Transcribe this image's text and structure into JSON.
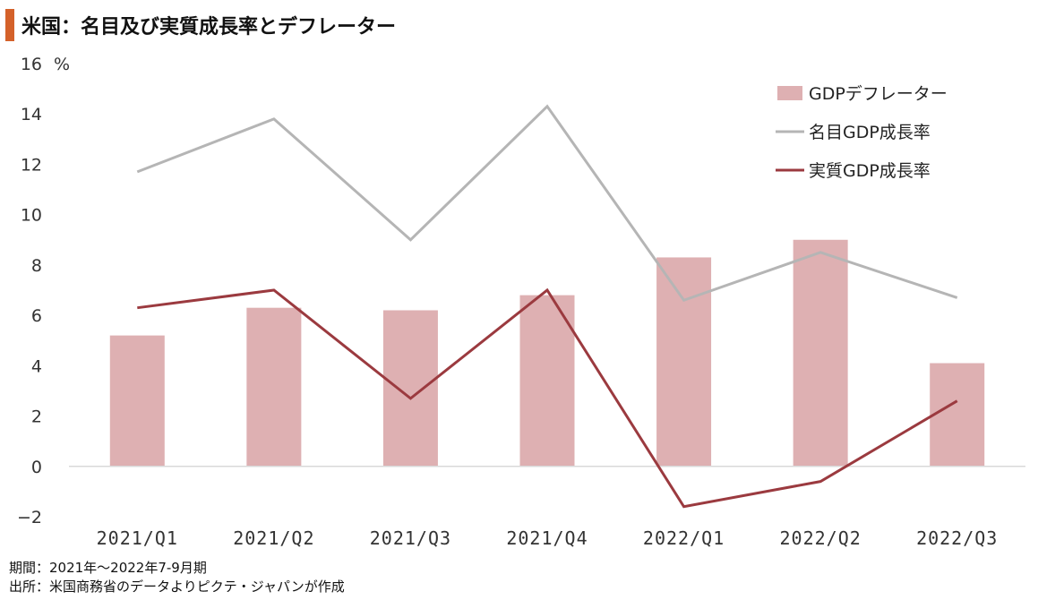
{
  "title": "米国：名目及び実質成長率とデフレーター",
  "colors": {
    "accent": "#d4612a",
    "bar": "#deb0b2",
    "nominal_line": "#b5b5b5",
    "real_line": "#9b3a3f",
    "axis": "#d9d9d9"
  },
  "chart_data": {
    "type": "bar",
    "categories": [
      "2021/Q1",
      "2021/Q2",
      "2021/Q3",
      "2021/Q4",
      "2022/Q1",
      "2022/Q2",
      "2022/Q3"
    ],
    "ylabel": "%",
    "ylim": [
      -2,
      16
    ],
    "yticks": [
      "16",
      "14",
      "12",
      "10",
      "8",
      "6",
      "4",
      "2",
      "0",
      "−2"
    ],
    "grid": false,
    "legend_position": "top-right",
    "series": [
      {
        "name": "GDPデフレーター",
        "type": "bar",
        "values": [
          5.2,
          6.3,
          6.2,
          6.8,
          8.3,
          9.0,
          4.1
        ]
      },
      {
        "name": "名目GDP成長率",
        "type": "line",
        "values": [
          11.7,
          13.8,
          9.0,
          14.3,
          6.6,
          8.5,
          6.7
        ]
      },
      {
        "name": "実質GDP成長率",
        "type": "line",
        "values": [
          6.3,
          7.0,
          2.7,
          7.0,
          -1.6,
          -0.6,
          2.6
        ]
      }
    ]
  },
  "notes": {
    "period": "期間：2021年～2022年7-9月期",
    "source": "出所：米国商務省のデータよりピクテ・ジャパンが作成"
  }
}
